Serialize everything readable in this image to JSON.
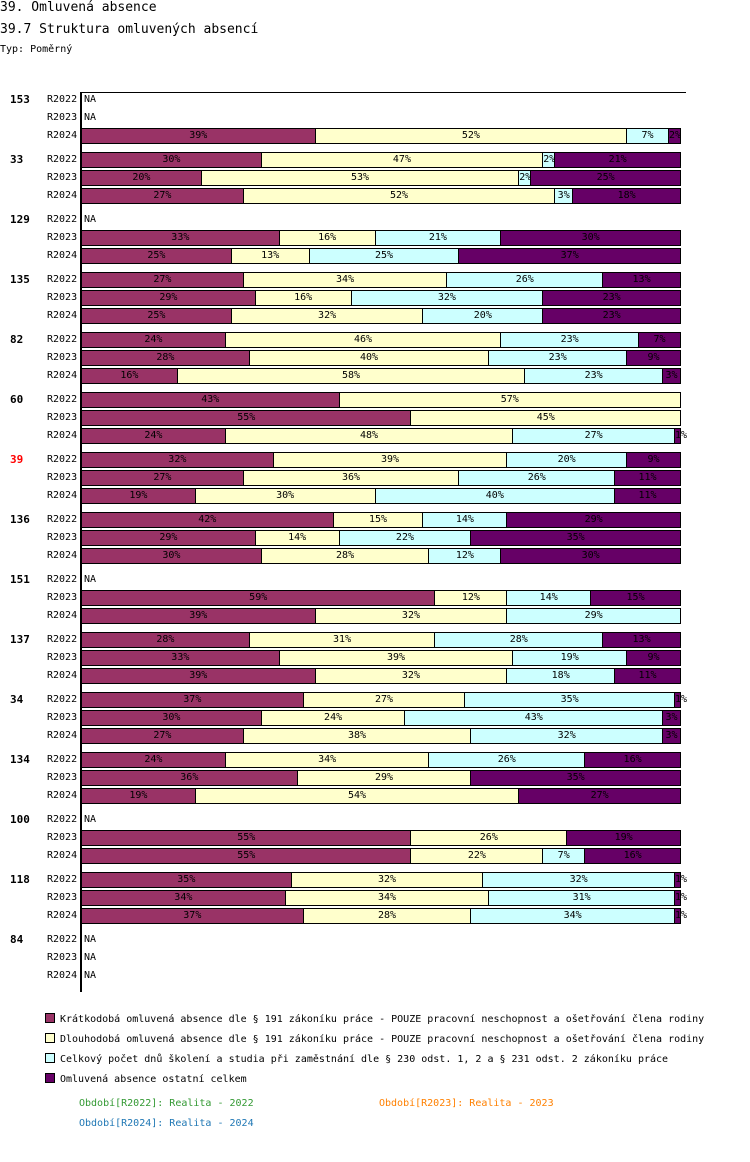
{
  "header": {
    "title": "39. Omluvená absence",
    "subtitle": "39.7 Struktura omluvených absencí",
    "type_label": "Typ: Poměrný"
  },
  "chart_data": {
    "type": "bar",
    "orientation": "horizontal",
    "stacked": true,
    "normalized": true,
    "title": "39.7 Struktura omluvených absencí",
    "series": [
      {
        "name": "Krátkodobá omluvená absence dle § 191 zákoníku práce - POUZE pracovní neschopnost a ošetřování člena rodiny",
        "color": "#993366"
      },
      {
        "name": "Dlouhodobá omluvená absence dle § 191 zákoníku práce - POUZE pracovní neschopnost a ošetřování člena rodiny",
        "color": "#ffffcc"
      },
      {
        "name": "Celkový počet dnů školení a studia při zaměstnání dle § 230 odst. 1, 2 a § 231 odst. 2 zákoníku práce",
        "color": "#ccffff"
      },
      {
        "name": "Omluvená absence ostatní celkem",
        "color": "#660066"
      }
    ],
    "periods": [
      "R2022",
      "R2023",
      "R2024"
    ],
    "na_label": "NA",
    "groups": [
      {
        "id": "153",
        "values": [
          null,
          null,
          [
            39,
            52,
            7,
            2
          ]
        ]
      },
      {
        "id": "33",
        "values": [
          [
            30,
            47,
            2,
            21
          ],
          [
            20,
            53,
            2,
            25
          ],
          [
            27,
            52,
            3,
            18
          ]
        ]
      },
      {
        "id": "129",
        "values": [
          null,
          [
            33,
            16,
            21,
            30
          ],
          [
            25,
            13,
            25,
            37
          ]
        ]
      },
      {
        "id": "135",
        "values": [
          [
            27,
            34,
            26,
            13
          ],
          [
            29,
            16,
            32,
            23
          ],
          [
            25,
            32,
            20,
            23
          ]
        ]
      },
      {
        "id": "82",
        "values": [
          [
            24,
            46,
            23,
            7
          ],
          [
            28,
            40,
            23,
            9
          ],
          [
            16,
            58,
            23,
            3
          ]
        ]
      },
      {
        "id": "60",
        "values": [
          [
            43,
            57,
            0,
            0
          ],
          [
            55,
            45,
            0,
            0
          ],
          [
            24,
            48,
            27,
            1
          ]
        ]
      },
      {
        "id": "39",
        "highlight": true,
        "values": [
          [
            32,
            39,
            20,
            9
          ],
          [
            27,
            36,
            26,
            11
          ],
          [
            19,
            30,
            40,
            11
          ]
        ]
      },
      {
        "id": "136",
        "values": [
          [
            42,
            15,
            14,
            29
          ],
          [
            29,
            14,
            22,
            35
          ],
          [
            30,
            28,
            12,
            30
          ]
        ]
      },
      {
        "id": "151",
        "values": [
          null,
          [
            59,
            12,
            14,
            15
          ],
          [
            39,
            32,
            29,
            0
          ]
        ]
      },
      {
        "id": "137",
        "values": [
          [
            28,
            31,
            28,
            13
          ],
          [
            33,
            39,
            19,
            9
          ],
          [
            39,
            32,
            18,
            11
          ]
        ]
      },
      {
        "id": "34",
        "values": [
          [
            37,
            27,
            35,
            1
          ],
          [
            30,
            24,
            43,
            3
          ],
          [
            27,
            38,
            32,
            3
          ]
        ]
      },
      {
        "id": "134",
        "values": [
          [
            24,
            34,
            26,
            16
          ],
          [
            36,
            29,
            0,
            35
          ],
          [
            19,
            54,
            0,
            27
          ]
        ]
      },
      {
        "id": "100",
        "values": [
          null,
          [
            55,
            26,
            0,
            19
          ],
          [
            55,
            22,
            7,
            16
          ]
        ]
      },
      {
        "id": "118",
        "values": [
          [
            35,
            32,
            32,
            1
          ],
          [
            34,
            34,
            31,
            1
          ],
          [
            37,
            28,
            34,
            1
          ]
        ]
      },
      {
        "id": "84",
        "values": [
          null,
          null,
          null
        ]
      }
    ],
    "highlight_color": "#ff0000"
  },
  "footnotes": [
    {
      "text": "Období[R2022]: Realita - 2022",
      "color": "#339933"
    },
    {
      "text": "Období[R2023]: Realita - 2023",
      "color": "#ff8000"
    },
    {
      "text": "Období[R2024]: Realita - 2024",
      "color": "#1f77b4"
    }
  ]
}
